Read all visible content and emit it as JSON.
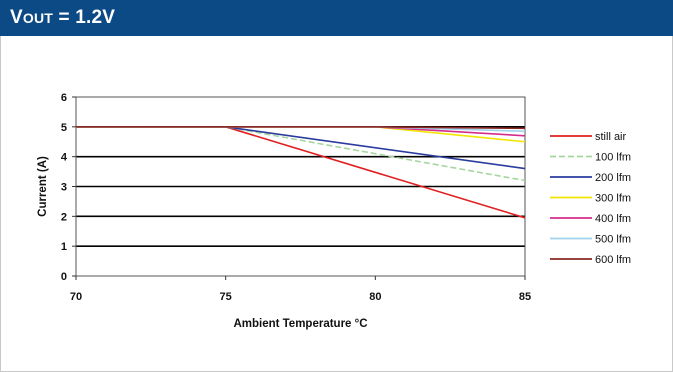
{
  "header": {
    "title_main": "V",
    "title_sub": "OUT",
    "title_rest": " = 1.2V",
    "background": "#0c4a86"
  },
  "chart_data": {
    "type": "line",
    "xlabel": "Ambient Temperature °C",
    "ylabel": "Current (A)",
    "xlim": [
      70,
      85
    ],
    "ylim": [
      0,
      6
    ],
    "xticks": [
      70,
      75,
      80,
      85
    ],
    "yticks": [
      0,
      1,
      2,
      3,
      4,
      5,
      6
    ],
    "grid": "horizontal",
    "legend_position": "right",
    "series": [
      {
        "name": "still air",
        "color": "#e02020",
        "dash": false,
        "x": [
          70,
          75,
          85
        ],
        "y": [
          5,
          5,
          1.95
        ]
      },
      {
        "name": "100 lfm",
        "color": "#a6d6a0",
        "dash": true,
        "x": [
          70,
          75,
          85
        ],
        "y": [
          5,
          5,
          3.2
        ]
      },
      {
        "name": "200 lfm",
        "color": "#2a3c9e",
        "dash": false,
        "x": [
          70,
          75,
          85
        ],
        "y": [
          5,
          5,
          3.6
        ]
      },
      {
        "name": "300 lfm",
        "color": "#f2e600",
        "dash": false,
        "x": [
          70,
          80,
          85
        ],
        "y": [
          5,
          5,
          4.5
        ]
      },
      {
        "name": "400 lfm",
        "color": "#d62c8c",
        "dash": false,
        "x": [
          70,
          80,
          85
        ],
        "y": [
          5,
          5,
          4.7
        ]
      },
      {
        "name": "500 lfm",
        "color": "#9fd3ee",
        "dash": false,
        "x": [
          70,
          80,
          85
        ],
        "y": [
          5,
          5,
          4.85
        ]
      },
      {
        "name": "600 lfm",
        "color": "#8a2a22",
        "dash": false,
        "x": [
          70,
          80,
          85
        ],
        "y": [
          5,
          5,
          4.95
        ]
      }
    ]
  }
}
